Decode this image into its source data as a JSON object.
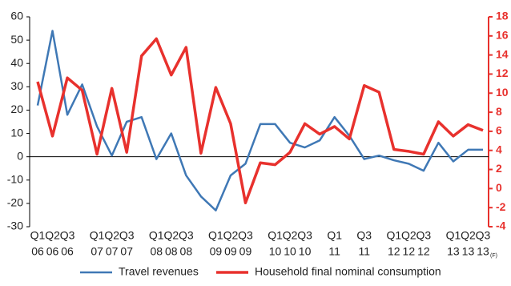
{
  "chart_data": {
    "type": "line",
    "categories": [
      [
        "Q1",
        "06"
      ],
      [
        "Q2",
        "06"
      ],
      [
        "Q3",
        "06"
      ],
      [
        "Q1",
        "07"
      ],
      [
        "Q2",
        "07"
      ],
      [
        "Q3",
        "07"
      ],
      [
        "Q1",
        "08"
      ],
      [
        "Q2",
        "08"
      ],
      [
        "Q3",
        "08"
      ],
      [
        "Q1",
        "09"
      ],
      [
        "Q2",
        "09"
      ],
      [
        "Q3",
        "09"
      ],
      [
        "Q1",
        "10"
      ],
      [
        "Q2",
        "10"
      ],
      [
        "Q3",
        "10"
      ],
      [
        "Q1",
        "11"
      ],
      [
        "Q3",
        "11"
      ],
      [
        "Q1",
        "12"
      ],
      [
        "Q2",
        "12"
      ],
      [
        "Q3",
        "12"
      ],
      [
        "Q1",
        "13"
      ],
      [
        "Q2",
        "13"
      ],
      [
        "Q3",
        "13",
        "(F)"
      ]
    ],
    "category_index": [
      0,
      1,
      2,
      4,
      5,
      6,
      8,
      9,
      10,
      12,
      13,
      14,
      16,
      17,
      18,
      20,
      22,
      24,
      25,
      26,
      28,
      29,
      30
    ],
    "x": [
      0,
      1,
      2,
      3,
      4,
      5,
      6,
      7,
      8,
      9,
      10,
      11,
      12,
      13,
      14,
      15,
      16,
      17,
      18,
      19,
      20,
      21,
      22,
      23,
      24,
      25,
      26,
      27,
      28,
      29,
      30
    ],
    "xlim": [
      0,
      30
    ],
    "ylim": [
      -30,
      60
    ],
    "yticks": [
      -30,
      -20,
      -10,
      0,
      10,
      20,
      30,
      40,
      50,
      60
    ],
    "y2lim": [
      -4,
      18
    ],
    "y2ticks": [
      -4,
      -2,
      0,
      2,
      4,
      6,
      8,
      10,
      12,
      14,
      16,
      18
    ],
    "y2_color": "#e8312d",
    "series": [
      {
        "name": "Travel revenues",
        "color": "#3f78b5",
        "values": [
          22,
          54,
          18,
          31,
          13,
          0.5,
          15,
          17,
          -1,
          10,
          -8,
          -17,
          -23,
          -8,
          -3,
          14,
          14,
          6,
          4,
          7,
          17,
          9,
          -1,
          0.5,
          -1.5,
          -3,
          -6,
          6,
          -2,
          3,
          3
        ]
      },
      {
        "name": "Household final nominal consumption",
        "color": "#e8312d",
        "axis": "y2",
        "values": [
          11.2,
          5.5,
          11.6,
          10.3,
          3.6,
          10.5,
          3.8,
          13.9,
          15.7,
          11.9,
          14.8,
          3.7,
          10.6,
          6.8,
          -1.5,
          2.7,
          2.5,
          3.8,
          6.8,
          5.7,
          6.5,
          5.2,
          10.8,
          10.1,
          4.1,
          3.9,
          3.6,
          7.0,
          5.5,
          6.7,
          6.1
        ]
      }
    ]
  }
}
